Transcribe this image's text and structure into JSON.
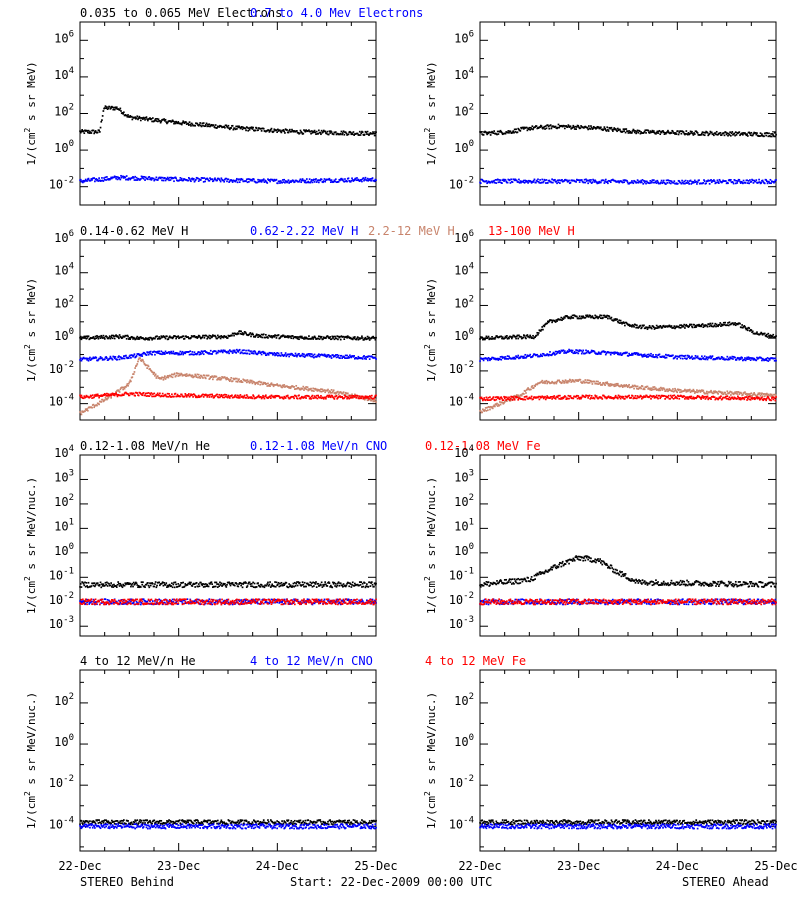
{
  "colors": {
    "black": "#000000",
    "blue": "#0000ff",
    "tan": "#c8846c",
    "red": "#ff0000",
    "frame": "#000000"
  },
  "footer": {
    "left": "STEREO Behind",
    "center": "Start: 22-Dec-2009 00:00 UTC",
    "right": "STEREO Ahead"
  },
  "chart_data": [
    {
      "type": "scatter",
      "row": 0,
      "spacecraft": "STEREO Behind",
      "legend": [
        {
          "text": "0.035 to 0.065 MeV Electrons",
          "color": "black"
        },
        {
          "text": "0.7 to 4.0 Mev Electrons",
          "color": "blue"
        }
      ],
      "ylabel_parts": [
        "1/(cm",
        "2",
        " s sr MeV)"
      ],
      "yscale": "log",
      "yexp": [
        -3,
        7
      ],
      "yticks": [
        -2,
        0,
        2,
        4,
        6
      ],
      "xlabels": [
        "22-Dec",
        "23-Dec",
        "24-Dec",
        "25-Dec"
      ],
      "x_unit": "days since 22-Dec-2009 00:00 UTC",
      "xlim": [
        0,
        3
      ],
      "series": [
        {
          "color": "black",
          "points": [
            [
              0.0,
              1.0
            ],
            [
              0.2,
              1.0
            ],
            [
              0.24,
              2.3
            ],
            [
              0.38,
              2.3
            ],
            [
              0.5,
              1.8
            ],
            [
              1.0,
              1.5
            ],
            [
              1.6,
              1.2
            ],
            [
              2.2,
              1.0
            ],
            [
              3.0,
              0.9
            ]
          ]
        },
        {
          "color": "blue",
          "points": [
            [
              0.0,
              -1.7
            ],
            [
              0.4,
              -1.5
            ],
            [
              1.0,
              -1.6
            ],
            [
              2.0,
              -1.7
            ],
            [
              3.0,
              -1.6
            ]
          ]
        }
      ]
    },
    {
      "type": "scatter",
      "row": 0,
      "spacecraft": "STEREO Ahead",
      "legend": [],
      "ylabel_parts": [
        "1/(cm",
        "2",
        " s sr MeV)"
      ],
      "yscale": "log",
      "yexp": [
        -3,
        7
      ],
      "yticks": [
        -2,
        0,
        2,
        4,
        6
      ],
      "xlabels": [
        "22-Dec",
        "23-Dec",
        "24-Dec",
        "25-Dec"
      ],
      "x_unit": "days since 22-Dec-2009 00:00 UTC",
      "xlim": [
        0,
        3
      ],
      "series": [
        {
          "color": "black",
          "points": [
            [
              0.0,
              0.9
            ],
            [
              0.3,
              1.0
            ],
            [
              0.5,
              1.2
            ],
            [
              0.8,
              1.3
            ],
            [
              1.2,
              1.2
            ],
            [
              1.6,
              1.0
            ],
            [
              2.0,
              0.95
            ],
            [
              3.0,
              0.85
            ]
          ]
        },
        {
          "color": "blue",
          "points": [
            [
              0.0,
              -1.7
            ],
            [
              1.0,
              -1.7
            ],
            [
              2.0,
              -1.75
            ],
            [
              3.0,
              -1.7
            ]
          ]
        }
      ]
    },
    {
      "type": "scatter",
      "row": 1,
      "spacecraft": "STEREO Behind",
      "legend": [
        {
          "text": "0.14-0.62 MeV H",
          "color": "black"
        },
        {
          "text": "0.62-2.22 MeV H",
          "color": "blue"
        },
        {
          "text": "2.2-12 MeV H",
          "color": "tan"
        },
        {
          "text": "13-100 MeV H",
          "color": "red"
        }
      ],
      "ylabel_parts": [
        "1/(cm",
        "2",
        " s sr MeV)"
      ],
      "yscale": "log",
      "yexp": [
        -5,
        6
      ],
      "yticks": [
        -4,
        -2,
        0,
        2,
        4,
        6
      ],
      "xlabels": [
        "22-Dec",
        "23-Dec",
        "24-Dec",
        "25-Dec"
      ],
      "x_unit": "days since 22-Dec-2009 00:00 UTC",
      "xlim": [
        0,
        3
      ],
      "series": [
        {
          "color": "black",
          "points": [
            [
              0.0,
              0.0
            ],
            [
              0.4,
              0.1
            ],
            [
              0.6,
              0.0
            ],
            [
              1.0,
              0.05
            ],
            [
              1.5,
              0.1
            ],
            [
              1.6,
              0.35
            ],
            [
              1.8,
              0.15
            ],
            [
              2.2,
              0.05
            ],
            [
              3.0,
              0.0
            ]
          ]
        },
        {
          "color": "blue",
          "points": [
            [
              0.0,
              -1.3
            ],
            [
              0.4,
              -1.2
            ],
            [
              0.6,
              -1.05
            ],
            [
              0.7,
              -0.9
            ],
            [
              1.2,
              -0.9
            ],
            [
              1.6,
              -0.8
            ],
            [
              2.0,
              -1.0
            ],
            [
              3.0,
              -1.2
            ]
          ]
        },
        {
          "color": "tan",
          "points": [
            [
              0.0,
              -4.6
            ],
            [
              0.3,
              -3.6
            ],
            [
              0.5,
              -2.8
            ],
            [
              0.6,
              -1.2
            ],
            [
              0.8,
              -2.5
            ],
            [
              1.0,
              -2.2
            ],
            [
              1.5,
              -2.5
            ],
            [
              2.0,
              -2.9
            ],
            [
              2.5,
              -3.2
            ],
            [
              3.0,
              -3.8
            ]
          ]
        },
        {
          "color": "red",
          "points": [
            [
              0.0,
              -3.6
            ],
            [
              0.5,
              -3.4
            ],
            [
              1.0,
              -3.5
            ],
            [
              2.0,
              -3.6
            ],
            [
              3.0,
              -3.6
            ]
          ]
        }
      ]
    },
    {
      "type": "scatter",
      "row": 1,
      "spacecraft": "STEREO Ahead",
      "legend": [],
      "ylabel_parts": [
        "1/(cm",
        "2",
        " s sr MeV)"
      ],
      "yscale": "log",
      "yexp": [
        -5,
        6
      ],
      "yticks": [
        -4,
        -2,
        0,
        2,
        4,
        6
      ],
      "xlabels": [
        "22-Dec",
        "23-Dec",
        "24-Dec",
        "25-Dec"
      ],
      "x_unit": "days since 22-Dec-2009 00:00 UTC",
      "xlim": [
        0,
        3
      ],
      "series": [
        {
          "color": "black",
          "points": [
            [
              0.0,
              0.0
            ],
            [
              0.55,
              0.1
            ],
            [
              0.7,
              1.0
            ],
            [
              0.9,
              1.3
            ],
            [
              1.3,
              1.3
            ],
            [
              1.5,
              0.8
            ],
            [
              1.7,
              0.65
            ],
            [
              2.2,
              0.75
            ],
            [
              2.6,
              0.9
            ],
            [
              2.8,
              0.3
            ],
            [
              3.0,
              0.1
            ]
          ]
        },
        {
          "color": "blue",
          "points": [
            [
              0.0,
              -1.3
            ],
            [
              0.5,
              -1.1
            ],
            [
              0.9,
              -0.8
            ],
            [
              1.3,
              -0.9
            ],
            [
              2.0,
              -1.15
            ],
            [
              3.0,
              -1.3
            ]
          ]
        },
        {
          "color": "tan",
          "points": [
            [
              0.0,
              -4.5
            ],
            [
              0.4,
              -3.5
            ],
            [
              0.6,
              -2.7
            ],
            [
              1.0,
              -2.6
            ],
            [
              1.6,
              -3.0
            ],
            [
              2.0,
              -3.2
            ],
            [
              3.0,
              -3.5
            ]
          ]
        },
        {
          "color": "red",
          "points": [
            [
              0.0,
              -3.7
            ],
            [
              1.0,
              -3.6
            ],
            [
              2.0,
              -3.6
            ],
            [
              3.0,
              -3.7
            ]
          ]
        }
      ]
    },
    {
      "type": "scatter",
      "row": 2,
      "spacecraft": "STEREO Behind",
      "legend": [
        {
          "text": "0.12-1.08 MeV/n He",
          "color": "black"
        },
        {
          "text": "0.12-1.08 MeV/n CNO",
          "color": "blue"
        },
        {
          "text": "0.12-1.08 MeV Fe",
          "color": "red"
        }
      ],
      "ylabel_parts": [
        "1/(cm",
        "2",
        " s sr MeV/nuc.)"
      ],
      "yscale": "log",
      "yexp": [
        -3.4,
        4
      ],
      "yticks": [
        -3,
        -2,
        -1,
        0,
        1,
        2,
        3,
        4
      ],
      "xlabels": [
        "22-Dec",
        "23-Dec",
        "24-Dec",
        "25-Dec"
      ],
      "x_unit": "days since 22-Dec-2009 00:00 UTC",
      "xlim": [
        0,
        3
      ],
      "series": [
        {
          "color": "black",
          "points": [
            [
              0.0,
              -1.3
            ],
            [
              3.0,
              -1.3
            ]
          ]
        },
        {
          "color": "blue",
          "points": [
            [
              0.0,
              -2.0
            ],
            [
              3.0,
              -2.0
            ]
          ]
        },
        {
          "color": "red",
          "points": [
            [
              0.0,
              -2.0
            ],
            [
              3.0,
              -2.0
            ]
          ]
        }
      ]
    },
    {
      "type": "scatter",
      "row": 2,
      "spacecraft": "STEREO Ahead",
      "legend": [],
      "ylabel_parts": [
        "1/(cm",
        "2",
        " s sr MeV/nuc.)"
      ],
      "yscale": "log",
      "yexp": [
        -3.4,
        4
      ],
      "yticks": [
        -3,
        -2,
        -1,
        0,
        1,
        2,
        3,
        4
      ],
      "xlabels": [
        "22-Dec",
        "23-Dec",
        "24-Dec",
        "25-Dec"
      ],
      "x_unit": "days since 22-Dec-2009 00:00 UTC",
      "xlim": [
        0,
        3
      ],
      "series": [
        {
          "color": "black",
          "points": [
            [
              0.0,
              -1.3
            ],
            [
              0.5,
              -1.1
            ],
            [
              0.8,
              -0.5
            ],
            [
              1.0,
              -0.2
            ],
            [
              1.2,
              -0.3
            ],
            [
              1.4,
              -0.8
            ],
            [
              1.6,
              -1.2
            ],
            [
              3.0,
              -1.3
            ]
          ]
        },
        {
          "color": "blue",
          "points": [
            [
              0.0,
              -2.0
            ],
            [
              3.0,
              -2.0
            ]
          ]
        },
        {
          "color": "red",
          "points": [
            [
              0.0,
              -2.0
            ],
            [
              3.0,
              -2.0
            ]
          ]
        }
      ]
    },
    {
      "type": "scatter",
      "row": 3,
      "spacecraft": "STEREO Behind",
      "legend": [
        {
          "text": "4 to 12 MeV/n He",
          "color": "black"
        },
        {
          "text": "4 to 12 MeV/n CNO",
          "color": "blue"
        },
        {
          "text": "4 to 12 MeV Fe",
          "color": "red"
        }
      ],
      "ylabel_parts": [
        "1/(cm",
        "2",
        " s sr MeV/nuc.)"
      ],
      "yscale": "log",
      "yexp": [
        -5.2,
        3.6
      ],
      "yticks": [
        -4,
        -2,
        0,
        2
      ],
      "xlabels": [
        "22-Dec",
        "23-Dec",
        "24-Dec",
        "25-Dec"
      ],
      "x_unit": "days since 22-Dec-2009 00:00 UTC",
      "xlim": [
        0,
        3
      ],
      "series": [
        {
          "color": "black",
          "points": [
            [
              0.0,
              -3.8
            ],
            [
              3.0,
              -3.8
            ]
          ]
        },
        {
          "color": "blue",
          "points": [
            [
              0.0,
              -4.0
            ],
            [
              3.0,
              -4.0
            ]
          ]
        }
      ]
    },
    {
      "type": "scatter",
      "row": 3,
      "spacecraft": "STEREO Ahead",
      "legend": [],
      "ylabel_parts": [
        "1/(cm",
        "2",
        " s sr MeV/nuc.)"
      ],
      "yscale": "log",
      "yexp": [
        -5.2,
        3.6
      ],
      "yticks": [
        -4,
        -2,
        0,
        2
      ],
      "xlabels": [
        "22-Dec",
        "23-Dec",
        "24-Dec",
        "25-Dec"
      ],
      "x_unit": "days since 22-Dec-2009 00:00 UTC",
      "xlim": [
        0,
        3
      ],
      "series": [
        {
          "color": "black",
          "points": [
            [
              0.0,
              -3.8
            ],
            [
              3.0,
              -3.8
            ]
          ]
        },
        {
          "color": "blue",
          "points": [
            [
              0.0,
              -4.0
            ],
            [
              3.0,
              -4.0
            ]
          ]
        }
      ]
    }
  ]
}
